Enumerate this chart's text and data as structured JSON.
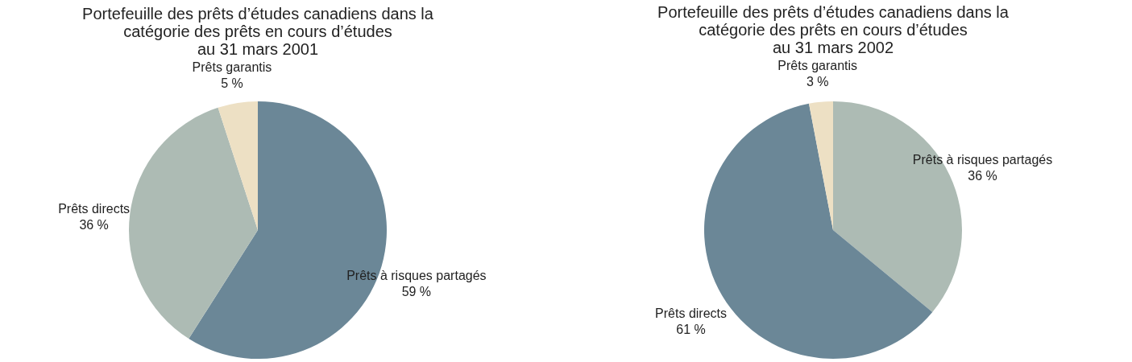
{
  "chart_data": [
    {
      "type": "pie",
      "title": "Portefeuille des prêts d’études canadiens dans la\ncatégorie des prêts en cours d’études\nau 31 mars 2001",
      "categories": [
        "Prêts à risques partagés",
        "Prêts directs",
        "Prêts garantis"
      ],
      "values": [
        59,
        36,
        5
      ],
      "value_labels": [
        "59 %",
        "36 %",
        "5 %"
      ],
      "colors": [
        "#6b8797",
        "#adbbb4",
        "#ede0c4"
      ],
      "legend": false
    },
    {
      "type": "pie",
      "title": "Portefeuille des prêts d’études canadiens dans la\ncatégorie des prêts en cours d’études\nau 31 mars 2002",
      "categories": [
        "Prêts à risques partagés",
        "Prêts directs",
        "Prêts garantis"
      ],
      "values": [
        36,
        61,
        3
      ],
      "value_labels": [
        "36 %",
        "61 %",
        "3 %"
      ],
      "colors": [
        "#adbbb4",
        "#6b8797",
        "#ede0c4"
      ],
      "legend": false
    }
  ]
}
